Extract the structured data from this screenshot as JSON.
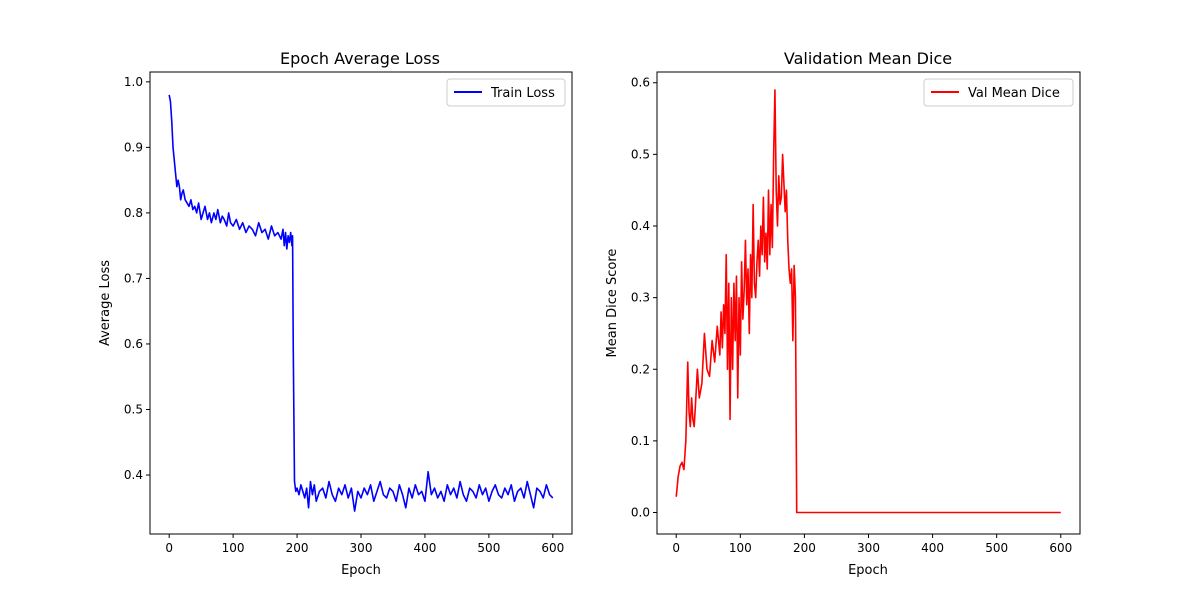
{
  "chart_data": [
    {
      "type": "line",
      "title": "Epoch Average Loss",
      "xlabel": "Epoch",
      "ylabel": "Average Loss",
      "xlim": [
        -30,
        630
      ],
      "ylim": [
        0.31,
        1.015
      ],
      "xticks": [
        0,
        100,
        200,
        300,
        400,
        500,
        600
      ],
      "yticks": [
        0.4,
        0.5,
        0.6,
        0.7,
        0.8,
        0.9,
        1.0
      ],
      "ytick_labels": [
        "0.4",
        "0.5",
        "0.6",
        "0.7",
        "0.8",
        "0.9",
        "1.0"
      ],
      "grid": false,
      "legend": "top-right",
      "series": [
        {
          "name": "Train Loss",
          "color": "#0000ff",
          "x": [
            0,
            2,
            4,
            6,
            8,
            10,
            12,
            14,
            16,
            18,
            20,
            22,
            25,
            28,
            31,
            34,
            37,
            40,
            43,
            46,
            50,
            53,
            56,
            60,
            63,
            66,
            70,
            73,
            76,
            80,
            83,
            86,
            90,
            93,
            96,
            100,
            105,
            110,
            115,
            120,
            125,
            130,
            135,
            140,
            145,
            150,
            155,
            160,
            165,
            170,
            175,
            178,
            180,
            182,
            184,
            186,
            188,
            190,
            192,
            193,
            194,
            196,
            198,
            200,
            203,
            206,
            209,
            212,
            215,
            218,
            221,
            224,
            227,
            230,
            235,
            240,
            245,
            250,
            255,
            260,
            265,
            270,
            275,
            280,
            285,
            290,
            295,
            300,
            305,
            310,
            315,
            320,
            325,
            330,
            335,
            340,
            345,
            350,
            355,
            360,
            365,
            370,
            375,
            380,
            385,
            390,
            395,
            400,
            405,
            410,
            415,
            420,
            425,
            430,
            435,
            440,
            445,
            450,
            455,
            460,
            465,
            470,
            475,
            480,
            485,
            490,
            495,
            500,
            505,
            510,
            515,
            520,
            525,
            530,
            535,
            540,
            545,
            550,
            555,
            560,
            565,
            570,
            575,
            580,
            585,
            590,
            595,
            600
          ],
          "values": [
            0.98,
            0.97,
            0.94,
            0.9,
            0.88,
            0.86,
            0.84,
            0.85,
            0.84,
            0.82,
            0.83,
            0.835,
            0.82,
            0.815,
            0.81,
            0.82,
            0.805,
            0.81,
            0.8,
            0.815,
            0.79,
            0.8,
            0.81,
            0.79,
            0.8,
            0.785,
            0.8,
            0.79,
            0.805,
            0.785,
            0.795,
            0.79,
            0.78,
            0.8,
            0.785,
            0.78,
            0.79,
            0.775,
            0.785,
            0.77,
            0.78,
            0.775,
            0.765,
            0.785,
            0.77,
            0.775,
            0.76,
            0.78,
            0.765,
            0.77,
            0.76,
            0.775,
            0.75,
            0.77,
            0.745,
            0.765,
            0.755,
            0.77,
            0.75,
            0.765,
            0.6,
            0.39,
            0.375,
            0.38,
            0.37,
            0.385,
            0.375,
            0.365,
            0.38,
            0.35,
            0.39,
            0.37,
            0.385,
            0.36,
            0.375,
            0.38,
            0.365,
            0.39,
            0.37,
            0.36,
            0.38,
            0.37,
            0.385,
            0.365,
            0.38,
            0.345,
            0.375,
            0.365,
            0.38,
            0.37,
            0.385,
            0.36,
            0.375,
            0.39,
            0.37,
            0.365,
            0.38,
            0.375,
            0.36,
            0.385,
            0.37,
            0.35,
            0.38,
            0.365,
            0.385,
            0.37,
            0.375,
            0.36,
            0.405,
            0.37,
            0.38,
            0.365,
            0.375,
            0.36,
            0.385,
            0.37,
            0.38,
            0.365,
            0.39,
            0.37,
            0.36,
            0.38,
            0.375,
            0.365,
            0.385,
            0.37,
            0.38,
            0.36,
            0.375,
            0.385,
            0.37,
            0.365,
            0.38,
            0.37,
            0.385,
            0.36,
            0.375,
            0.38,
            0.365,
            0.39,
            0.37,
            0.35,
            0.38,
            0.375,
            0.365,
            0.385,
            0.37,
            0.365
          ]
        }
      ]
    },
    {
      "type": "line",
      "title": "Validation Mean Dice",
      "xlabel": "Epoch",
      "ylabel": "Mean Dice Score",
      "xlim": [
        -30,
        630
      ],
      "ylim": [
        -0.03,
        0.615
      ],
      "xticks": [
        0,
        100,
        200,
        300,
        400,
        500,
        600
      ],
      "yticks": [
        0.0,
        0.1,
        0.2,
        0.3,
        0.4,
        0.5,
        0.6
      ],
      "ytick_labels": [
        "0.0",
        "0.1",
        "0.2",
        "0.3",
        "0.4",
        "0.5",
        "0.6"
      ],
      "grid": false,
      "legend": "top-right",
      "series": [
        {
          "name": "Val Mean Dice",
          "color": "#ff0000",
          "x": [
            0,
            3,
            6,
            9,
            12,
            15,
            18,
            20,
            22,
            24,
            26,
            28,
            30,
            33,
            36,
            40,
            44,
            48,
            52,
            56,
            60,
            64,
            68,
            70,
            72,
            74,
            76,
            78,
            80,
            82,
            84,
            86,
            88,
            90,
            92,
            94,
            96,
            98,
            100,
            102,
            104,
            106,
            108,
            110,
            112,
            114,
            116,
            118,
            120,
            122,
            124,
            126,
            128,
            130,
            132,
            134,
            136,
            138,
            140,
            142,
            144,
            146,
            148,
            150,
            152,
            154,
            156,
            158,
            160,
            162,
            164,
            166,
            168,
            170,
            172,
            174,
            176,
            178,
            180,
            182,
            184,
            186,
            188,
            190,
            192,
            194,
            200,
            250,
            300,
            350,
            400,
            450,
            500,
            550,
            600
          ],
          "values": [
            0.022,
            0.05,
            0.065,
            0.07,
            0.06,
            0.1,
            0.21,
            0.14,
            0.12,
            0.16,
            0.13,
            0.12,
            0.15,
            0.2,
            0.16,
            0.18,
            0.25,
            0.2,
            0.19,
            0.24,
            0.21,
            0.26,
            0.22,
            0.28,
            0.23,
            0.29,
            0.25,
            0.36,
            0.2,
            0.32,
            0.13,
            0.3,
            0.2,
            0.32,
            0.24,
            0.33,
            0.16,
            0.3,
            0.22,
            0.35,
            0.27,
            0.31,
            0.38,
            0.29,
            0.34,
            0.25,
            0.36,
            0.3,
            0.43,
            0.32,
            0.3,
            0.35,
            0.38,
            0.33,
            0.4,
            0.36,
            0.44,
            0.35,
            0.39,
            0.34,
            0.45,
            0.36,
            0.43,
            0.37,
            0.5,
            0.59,
            0.45,
            0.4,
            0.47,
            0.43,
            0.44,
            0.5,
            0.46,
            0.42,
            0.45,
            0.38,
            0.34,
            0.32,
            0.34,
            0.24,
            0.345,
            0.3,
            0.0,
            0.0,
            0.0,
            0.0,
            0.0,
            0.0,
            0.0,
            0.0,
            0.0,
            0.0,
            0.0,
            0.0,
            0.0
          ]
        }
      ]
    }
  ]
}
